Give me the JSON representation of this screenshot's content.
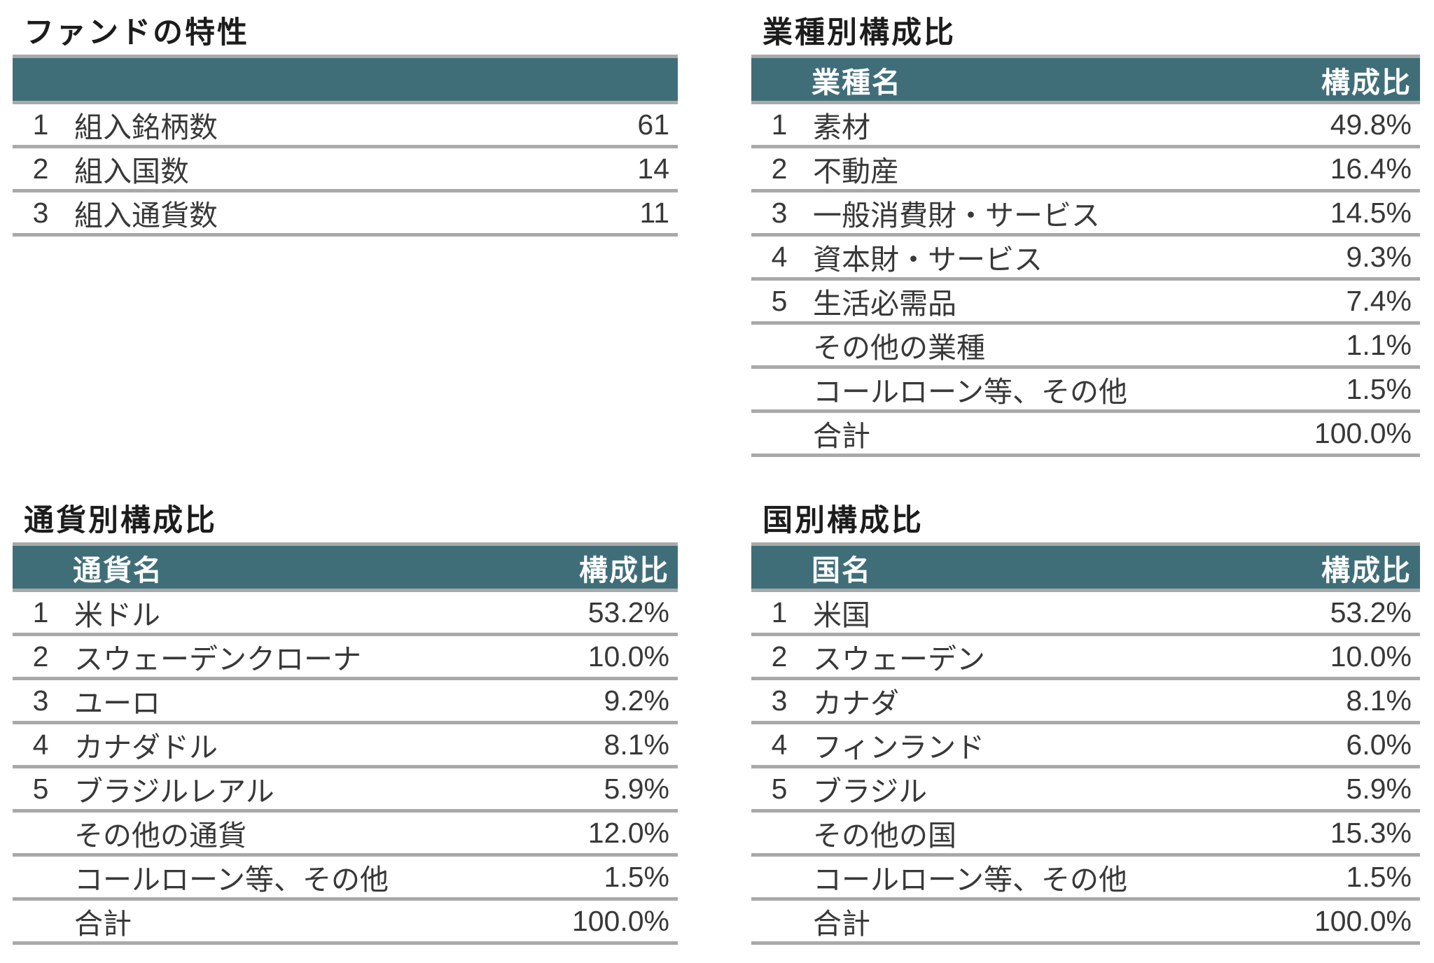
{
  "colors": {
    "header_bg": "#3f6e79",
    "header_text": "#ffffff",
    "body_text": "#383838",
    "separator": "#a9a9a9",
    "title_text": "#1c1c1c",
    "page_bg": "#ffffff"
  },
  "tables": {
    "fund": {
      "title": "ファンドの特性",
      "header": {
        "name": "",
        "value": ""
      },
      "rows": [
        {
          "rank": "1",
          "name": "組入銘柄数",
          "value": "61"
        },
        {
          "rank": "2",
          "name": "組入国数",
          "value": "14"
        },
        {
          "rank": "3",
          "name": "組入通貨数",
          "value": "11"
        }
      ]
    },
    "sector": {
      "title": "業種別構成比",
      "header": {
        "name": "業種名",
        "value": "構成比"
      },
      "rows": [
        {
          "rank": "1",
          "name": "素材",
          "value": "49.8%"
        },
        {
          "rank": "2",
          "name": "不動産",
          "value": "16.4%"
        },
        {
          "rank": "3",
          "name": "一般消費財・サービス",
          "value": "14.5%"
        },
        {
          "rank": "4",
          "name": "資本財・サービス",
          "value": "9.3%"
        },
        {
          "rank": "5",
          "name": "生活必需品",
          "value": "7.4%"
        },
        {
          "rank": "",
          "name": "その他の業種",
          "value": "1.1%"
        },
        {
          "rank": "",
          "name": "コールローン等、その他",
          "value": "1.5%"
        },
        {
          "rank": "",
          "name": "合計",
          "value": "100.0%"
        }
      ]
    },
    "currency": {
      "title": "通貨別構成比",
      "header": {
        "name": "通貨名",
        "value": "構成比"
      },
      "rows": [
        {
          "rank": "1",
          "name": "米ドル",
          "value": "53.2%"
        },
        {
          "rank": "2",
          "name": "スウェーデンクローナ",
          "value": "10.0%"
        },
        {
          "rank": "3",
          "name": "ユーロ",
          "value": "9.2%"
        },
        {
          "rank": "4",
          "name": "カナダドル",
          "value": "8.1%"
        },
        {
          "rank": "5",
          "name": "ブラジルレアル",
          "value": "5.9%"
        },
        {
          "rank": "",
          "name": "その他の通貨",
          "value": "12.0%"
        },
        {
          "rank": "",
          "name": "コールローン等、その他",
          "value": "1.5%"
        },
        {
          "rank": "",
          "name": "合計",
          "value": "100.0%"
        }
      ]
    },
    "country": {
      "title": "国別構成比",
      "header": {
        "name": "国名",
        "value": "構成比"
      },
      "rows": [
        {
          "rank": "1",
          "name": "米国",
          "value": "53.2%"
        },
        {
          "rank": "2",
          "name": "スウェーデン",
          "value": "10.0%"
        },
        {
          "rank": "3",
          "name": "カナダ",
          "value": "8.1%"
        },
        {
          "rank": "4",
          "name": "フィンランド",
          "value": "6.0%"
        },
        {
          "rank": "5",
          "name": "ブラジル",
          "value": "5.9%"
        },
        {
          "rank": "",
          "name": "その他の国",
          "value": "15.3%"
        },
        {
          "rank": "",
          "name": "コールローン等、その他",
          "value": "1.5%"
        },
        {
          "rank": "",
          "name": "合計",
          "value": "100.0%"
        }
      ]
    }
  }
}
